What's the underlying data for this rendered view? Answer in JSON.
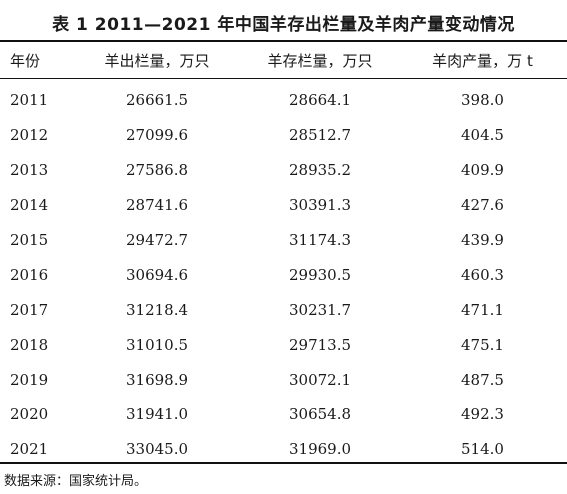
{
  "title": "表 1  2011—2021 年中国羊存出栏量及羊肉产量变动情况",
  "headers": [
    "年份",
    "羊出栏量，万只",
    "羊存栏量，万只",
    "羊肉产量，万 t"
  ],
  "rows": [
    [
      "2011",
      "26661.5",
      "28664.1",
      "398.0"
    ],
    [
      "2012",
      "27099.6",
      "28512.7",
      "404.5"
    ],
    [
      "2013",
      "27586.8",
      "28935.2",
      "409.9"
    ],
    [
      "2014",
      "28741.6",
      "30391.3",
      "427.6"
    ],
    [
      "2015",
      "29472.7",
      "31174.3",
      "439.9"
    ],
    [
      "2016",
      "30694.6",
      "29930.5",
      "460.3"
    ],
    [
      "2017",
      "31218.4",
      "30231.7",
      "471.1"
    ],
    [
      "2018",
      "31010.5",
      "29713.5",
      "475.1"
    ],
    [
      "2019",
      "31698.9",
      "30072.1",
      "487.5"
    ],
    [
      "2020",
      "31941.0",
      "30654.8",
      "492.3"
    ],
    [
      "2021",
      "33045.0",
      "31969.0",
      "514.0"
    ]
  ],
  "source": "数据来源：国家统计局。"
}
